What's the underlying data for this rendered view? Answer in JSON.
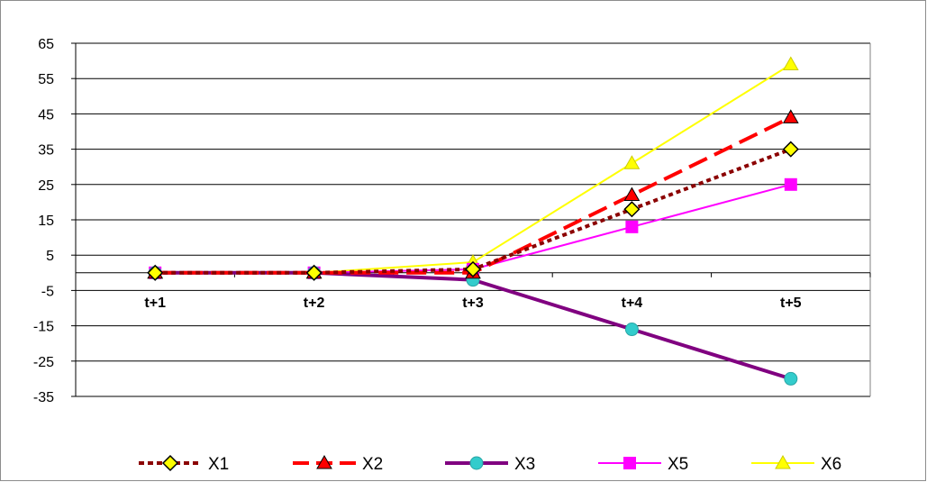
{
  "chart_data": {
    "type": "line",
    "categories": [
      "t+1",
      "t+2",
      "t+3",
      "t+4",
      "t+5"
    ],
    "ylim": [
      -35,
      65
    ],
    "yticks": [
      65,
      55,
      45,
      35,
      25,
      15,
      5,
      -5,
      -15,
      -25,
      -35
    ],
    "grid": true,
    "legend_position": "bottom",
    "series": [
      {
        "name": "X1",
        "values": [
          0,
          0,
          1,
          18,
          35
        ],
        "color": "#8b0000",
        "marker": "diamond",
        "marker_fill": "#ffff00",
        "line": "dotted"
      },
      {
        "name": "X2",
        "values": [
          0,
          0,
          0,
          22,
          44
        ],
        "color": "#ff0000",
        "marker": "triangle",
        "marker_fill": "#ff0000",
        "line": "dashed"
      },
      {
        "name": "X3",
        "values": [
          0,
          0,
          -2,
          -16,
          -30
        ],
        "color": "#800080",
        "marker": "circle",
        "marker_fill": "#33cccc",
        "line": "solid-thick"
      },
      {
        "name": "X5",
        "values": [
          0,
          0,
          1,
          13,
          25
        ],
        "color": "#ff00ff",
        "marker": "square",
        "marker_fill": "#ff00ff",
        "line": "solid"
      },
      {
        "name": "X6",
        "values": [
          0,
          0,
          3,
          31,
          59
        ],
        "color": "#ffff00",
        "marker": "triangle",
        "marker_fill": "#ffff00",
        "line": "solid"
      }
    ]
  }
}
